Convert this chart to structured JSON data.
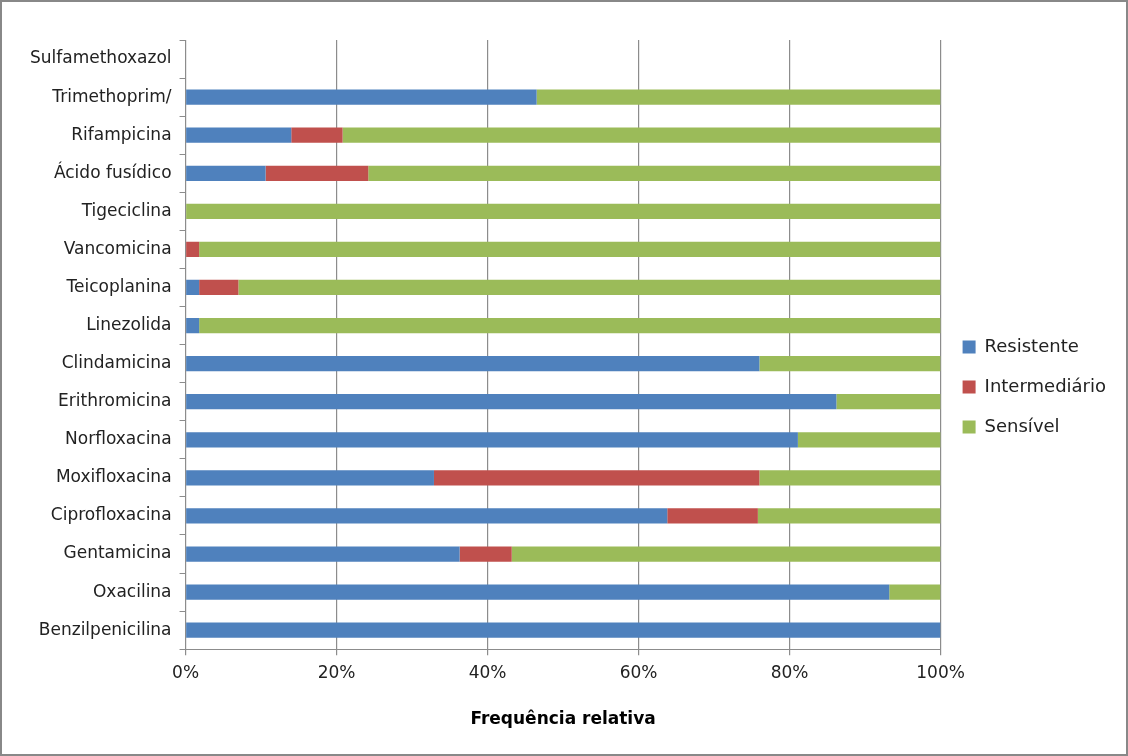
{
  "chart_data": {
    "type": "bar",
    "orientation": "horizontal",
    "stacked": true,
    "xlabel": "Frequência relativa",
    "categories": [
      "Sulfamethoxazol",
      "Trimethoprim/",
      "Rifampicina",
      "Ácido fusídico",
      "Tigeciclina",
      "Vancomicina",
      "Teicoplanina",
      "Linezolida",
      "Clindamicina",
      "Erithromicina",
      "Norfloxacina",
      "Moxifloxacina",
      "Ciprofloxacina",
      "Gentamicina",
      "Oxacilina",
      "Benzilpenicilina"
    ],
    "series": [
      {
        "name": "Resistente",
        "color": "#4f81bd",
        "values": [
          null,
          46.5,
          14,
          10.6,
          0,
          0,
          1.8,
          1.8,
          76,
          86.2,
          81.1,
          32.9,
          63.8,
          36.3,
          93.2,
          100
        ]
      },
      {
        "name": "Intermediário",
        "color": "#c0504d",
        "values": [
          null,
          0,
          6.8,
          13.6,
          0,
          1.8,
          5.2,
          0,
          0,
          0,
          0,
          43.1,
          12,
          6.9,
          0,
          0
        ]
      },
      {
        "name": "Sensível",
        "color": "#9bbb59",
        "values": [
          null,
          53.5,
          79.2,
          75.8,
          100,
          98.2,
          93,
          98.2,
          24,
          13.8,
          18.9,
          24,
          24.2,
          56.8,
          6.8,
          0
        ]
      }
    ],
    "xlim": [
      0,
      100
    ],
    "xticks": [
      {
        "value": 0,
        "label": "0%"
      },
      {
        "value": 20,
        "label": "20%"
      },
      {
        "value": 40,
        "label": "40%"
      },
      {
        "value": 60,
        "label": "60%"
      },
      {
        "value": 80,
        "label": "80%"
      },
      {
        "value": 100,
        "label": "100%"
      }
    ],
    "grid": "x",
    "legend": "right"
  }
}
